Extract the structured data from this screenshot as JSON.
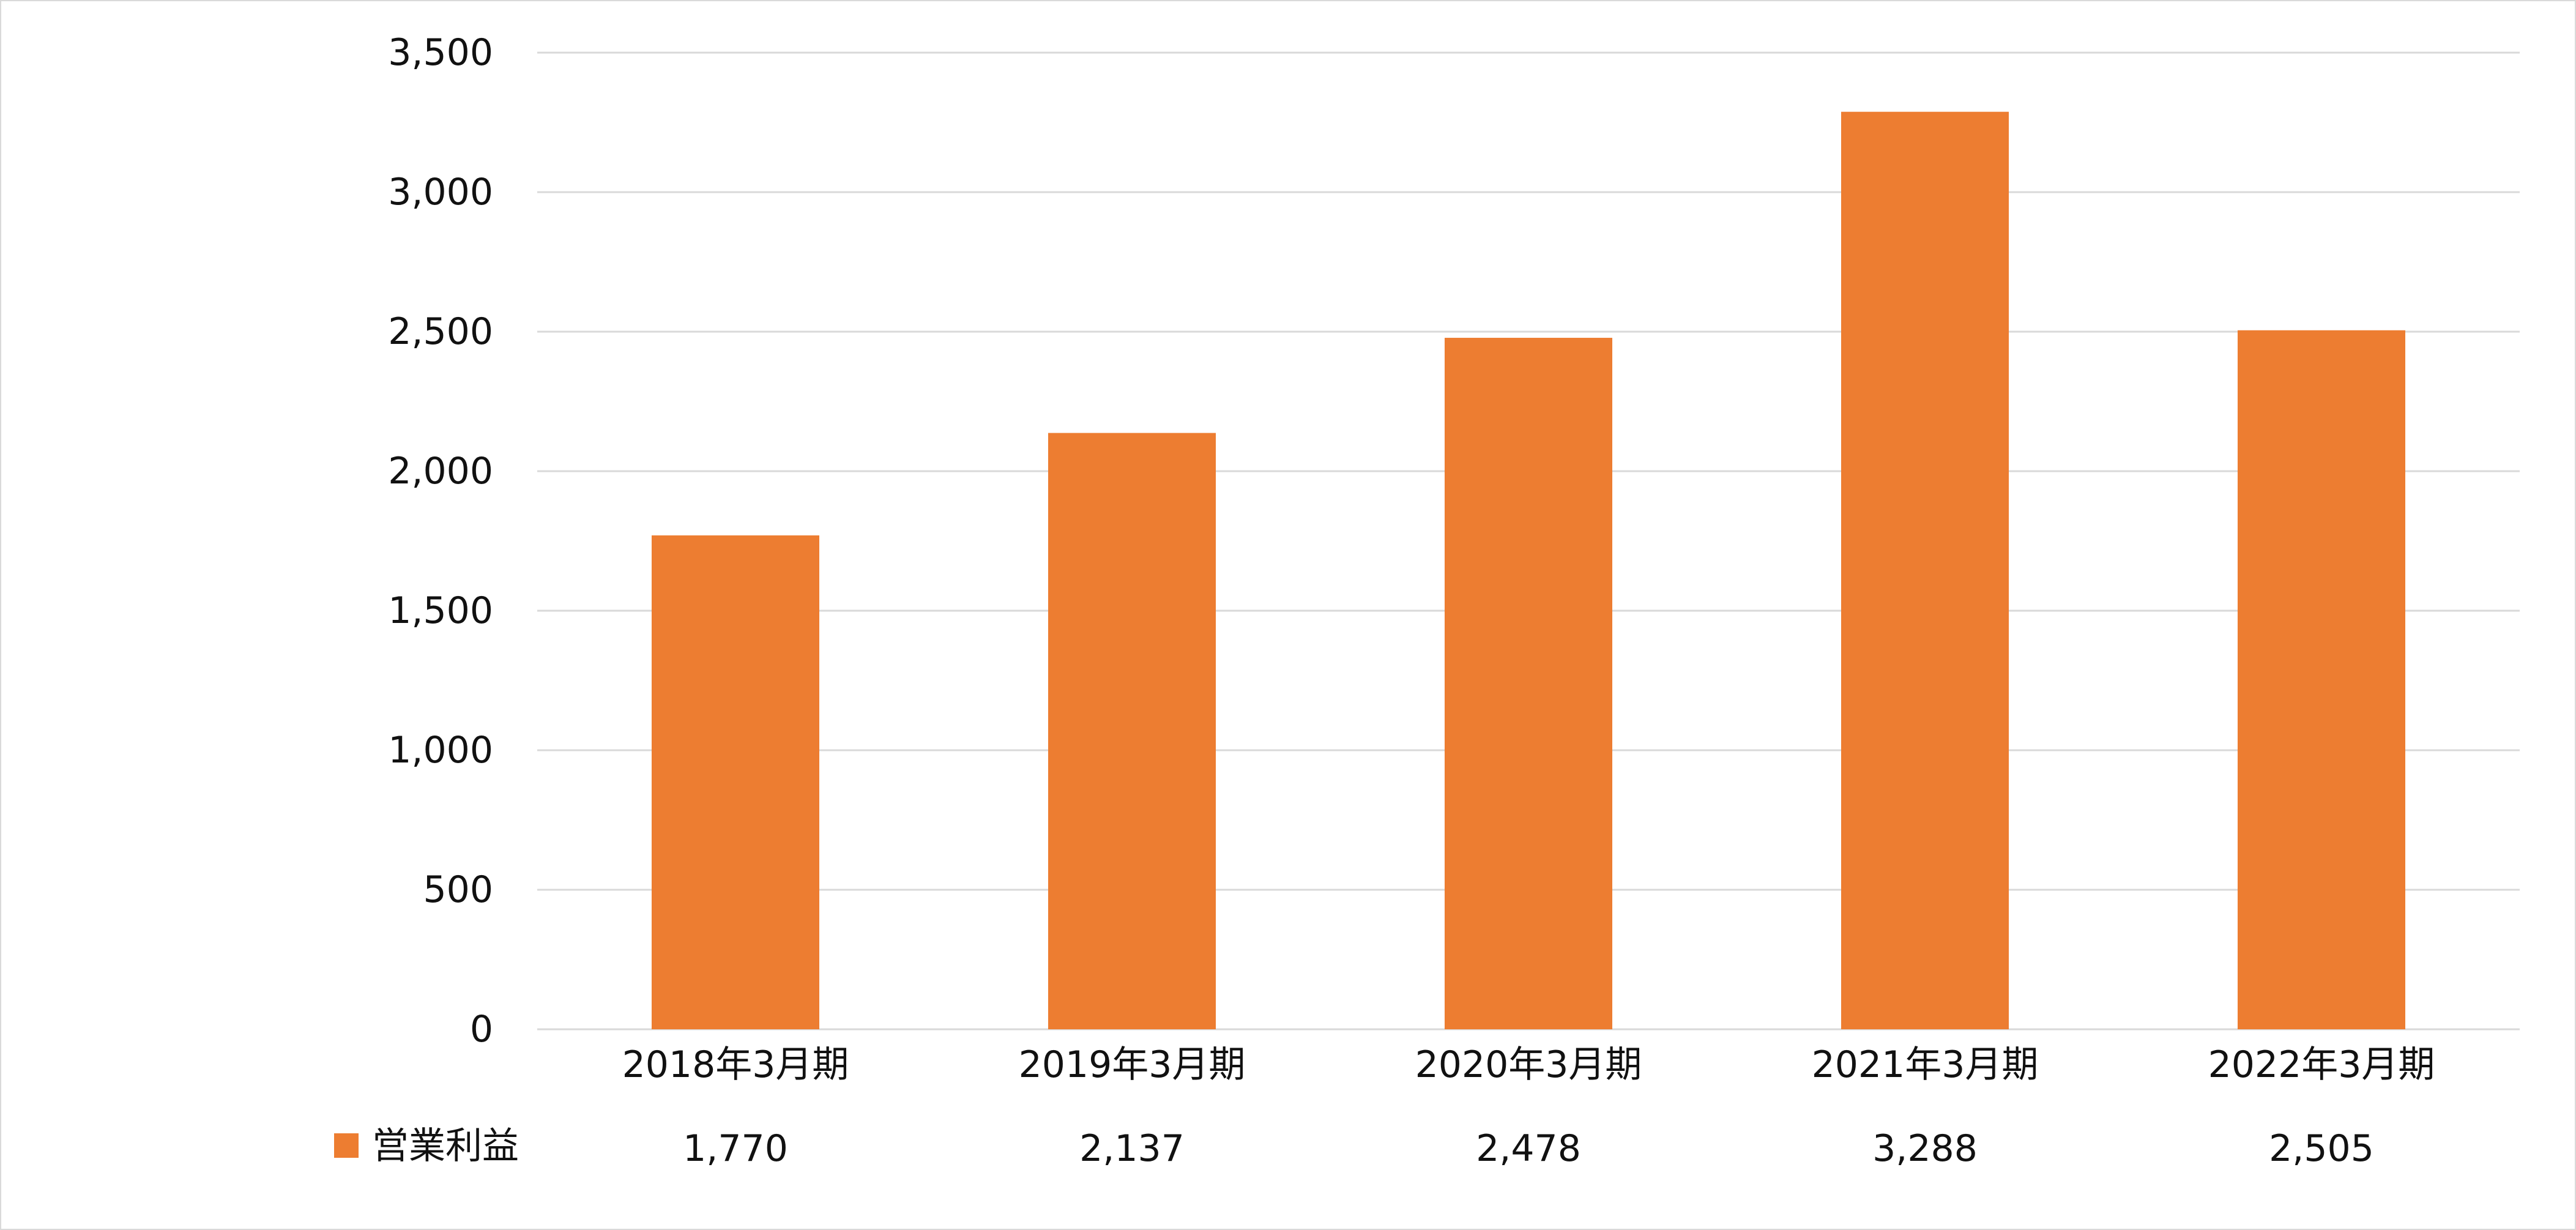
{
  "chart_data": {
    "type": "bar",
    "categories": [
      "2018年3月期",
      "2019年3月期",
      "2020年3月期",
      "2021年3月期",
      "2022年3月期"
    ],
    "series": [
      {
        "name": "営業利益",
        "values": [
          1770,
          2137,
          2478,
          3288,
          2505
        ],
        "value_labels": [
          "1,770",
          "2,137",
          "2,478",
          "3,288",
          "2,505"
        ],
        "color": "#ED7D31"
      }
    ],
    "yticks": [
      "0",
      "500",
      "1,000",
      "1,500",
      "2,000",
      "2,500",
      "3,000",
      "3,500"
    ],
    "ylim": [
      0,
      3500
    ],
    "grid": true,
    "legend_position": "bottom-left data table",
    "gridline_color": "#d9d9d9",
    "frame_color": "#d9d9d9"
  }
}
